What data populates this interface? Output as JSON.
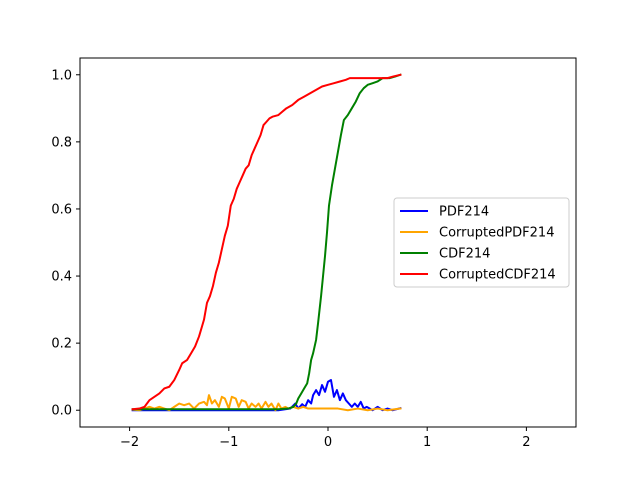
{
  "chart_data": {
    "type": "line",
    "title": "",
    "xlabel": "",
    "ylabel": "",
    "xlim": [
      -2.5,
      2.5
    ],
    "ylim": [
      -0.05,
      1.05
    ],
    "xticks": [
      -2,
      -1,
      0,
      1,
      2
    ],
    "xtick_labels": [
      "−2",
      "−1",
      "0",
      "1",
      "2"
    ],
    "yticks": [
      0.0,
      0.2,
      0.4,
      0.6,
      0.8,
      1.0
    ],
    "ytick_labels": [
      "0.0",
      "0.2",
      "0.4",
      "0.6",
      "0.8",
      "1.0"
    ],
    "grid": false,
    "legend_position": "center-right",
    "series": [
      {
        "name": "PDF214",
        "color": "#0000ff",
        "points": [
          [
            -1.97,
            0.0
          ],
          [
            -1.5,
            0.0
          ],
          [
            -1.0,
            0.0
          ],
          [
            -0.5,
            0.0
          ],
          [
            -0.38,
            0.005
          ],
          [
            -0.33,
            0.02
          ],
          [
            -0.3,
            0.005
          ],
          [
            -0.26,
            0.018
          ],
          [
            -0.23,
            0.01
          ],
          [
            -0.2,
            0.03
          ],
          [
            -0.17,
            0.02
          ],
          [
            -0.15,
            0.045
          ],
          [
            -0.12,
            0.06
          ],
          [
            -0.09,
            0.045
          ],
          [
            -0.06,
            0.075
          ],
          [
            -0.03,
            0.055
          ],
          [
            0.0,
            0.085
          ],
          [
            0.03,
            0.09
          ],
          [
            0.06,
            0.04
          ],
          [
            0.09,
            0.06
          ],
          [
            0.12,
            0.03
          ],
          [
            0.15,
            0.05
          ],
          [
            0.18,
            0.03
          ],
          [
            0.21,
            0.02
          ],
          [
            0.24,
            0.01
          ],
          [
            0.27,
            0.02
          ],
          [
            0.3,
            0.01
          ],
          [
            0.33,
            0.025
          ],
          [
            0.36,
            0.005
          ],
          [
            0.39,
            0.01
          ],
          [
            0.42,
            0.005
          ],
          [
            0.45,
            0.0
          ],
          [
            0.5,
            0.01
          ],
          [
            0.55,
            0.0
          ],
          [
            0.6,
            0.005
          ],
          [
            0.65,
            0.0
          ],
          [
            0.73,
            0.006
          ]
        ]
      },
      {
        "name": "CorruptedPDF214",
        "color": "#ffa500",
        "points": [
          [
            -1.97,
            0.002
          ],
          [
            -1.9,
            0.0
          ],
          [
            -1.85,
            0.005
          ],
          [
            -1.8,
            0.01
          ],
          [
            -1.75,
            0.005
          ],
          [
            -1.7,
            0.01
          ],
          [
            -1.65,
            0.005
          ],
          [
            -1.6,
            0.0
          ],
          [
            -1.55,
            0.01
          ],
          [
            -1.5,
            0.02
          ],
          [
            -1.45,
            0.015
          ],
          [
            -1.4,
            0.02
          ],
          [
            -1.35,
            0.005
          ],
          [
            -1.3,
            0.02
          ],
          [
            -1.25,
            0.025
          ],
          [
            -1.22,
            0.015
          ],
          [
            -1.2,
            0.045
          ],
          [
            -1.17,
            0.02
          ],
          [
            -1.14,
            0.03
          ],
          [
            -1.1,
            0.01
          ],
          [
            -1.07,
            0.04
          ],
          [
            -1.04,
            0.035
          ],
          [
            -1.0,
            0.005
          ],
          [
            -0.97,
            0.04
          ],
          [
            -0.93,
            0.035
          ],
          [
            -0.9,
            0.01
          ],
          [
            -0.87,
            0.03
          ],
          [
            -0.83,
            0.025
          ],
          [
            -0.8,
            0.005
          ],
          [
            -0.77,
            0.02
          ],
          [
            -0.73,
            0.01
          ],
          [
            -0.7,
            0.02
          ],
          [
            -0.67,
            0.005
          ],
          [
            -0.63,
            0.025
          ],
          [
            -0.6,
            0.01
          ],
          [
            -0.57,
            0.02
          ],
          [
            -0.53,
            0.0
          ],
          [
            -0.5,
            0.02
          ],
          [
            -0.47,
            0.005
          ],
          [
            -0.43,
            0.01
          ],
          [
            -0.4,
            0.005
          ],
          [
            -0.35,
            0.01
          ],
          [
            -0.3,
            0.005
          ],
          [
            -0.25,
            0.01
          ],
          [
            -0.2,
            0.005
          ],
          [
            -0.1,
            0.005
          ],
          [
            0.0,
            0.005
          ],
          [
            0.1,
            0.005
          ],
          [
            0.2,
            0.0
          ],
          [
            0.3,
            0.005
          ],
          [
            0.4,
            0.0
          ],
          [
            0.5,
            0.005
          ],
          [
            0.6,
            0.0
          ],
          [
            0.73,
            0.005
          ]
        ]
      },
      {
        "name": "CDF214",
        "color": "#008000",
        "points": [
          [
            -1.97,
            0.003
          ],
          [
            -1.5,
            0.003
          ],
          [
            -1.0,
            0.003
          ],
          [
            -0.5,
            0.003
          ],
          [
            -0.4,
            0.005
          ],
          [
            -0.35,
            0.01
          ],
          [
            -0.32,
            0.02
          ],
          [
            -0.3,
            0.035
          ],
          [
            -0.27,
            0.05
          ],
          [
            -0.24,
            0.065
          ],
          [
            -0.21,
            0.08
          ],
          [
            -0.19,
            0.11
          ],
          [
            -0.17,
            0.15
          ],
          [
            -0.15,
            0.17
          ],
          [
            -0.12,
            0.21
          ],
          [
            -0.1,
            0.26
          ],
          [
            -0.07,
            0.34
          ],
          [
            -0.05,
            0.4
          ],
          [
            -0.03,
            0.46
          ],
          [
            -0.01,
            0.53
          ],
          [
            0.01,
            0.61
          ],
          [
            0.04,
            0.67
          ],
          [
            0.07,
            0.72
          ],
          [
            0.1,
            0.77
          ],
          [
            0.13,
            0.82
          ],
          [
            0.16,
            0.865
          ],
          [
            0.2,
            0.88
          ],
          [
            0.24,
            0.9
          ],
          [
            0.28,
            0.92
          ],
          [
            0.32,
            0.945
          ],
          [
            0.36,
            0.96
          ],
          [
            0.4,
            0.97
          ],
          [
            0.45,
            0.975
          ],
          [
            0.5,
            0.98
          ],
          [
            0.55,
            0.99
          ],
          [
            0.62,
            0.99
          ],
          [
            0.68,
            0.995
          ],
          [
            0.73,
            1.0
          ]
        ]
      },
      {
        "name": "CorruptedCDF214",
        "color": "#ff0000",
        "points": [
          [
            -1.97,
            0.003
          ],
          [
            -1.9,
            0.005
          ],
          [
            -1.85,
            0.01
          ],
          [
            -1.8,
            0.03
          ],
          [
            -1.75,
            0.04
          ],
          [
            -1.7,
            0.05
          ],
          [
            -1.65,
            0.065
          ],
          [
            -1.6,
            0.07
          ],
          [
            -1.55,
            0.09
          ],
          [
            -1.5,
            0.12
          ],
          [
            -1.47,
            0.14
          ],
          [
            -1.42,
            0.15
          ],
          [
            -1.38,
            0.17
          ],
          [
            -1.34,
            0.19
          ],
          [
            -1.3,
            0.22
          ],
          [
            -1.27,
            0.25
          ],
          [
            -1.25,
            0.27
          ],
          [
            -1.22,
            0.32
          ],
          [
            -1.19,
            0.34
          ],
          [
            -1.16,
            0.37
          ],
          [
            -1.13,
            0.41
          ],
          [
            -1.1,
            0.44
          ],
          [
            -1.07,
            0.48
          ],
          [
            -1.04,
            0.52
          ],
          [
            -1.01,
            0.55
          ],
          [
            -0.98,
            0.61
          ],
          [
            -0.95,
            0.63
          ],
          [
            -0.92,
            0.66
          ],
          [
            -0.89,
            0.68
          ],
          [
            -0.86,
            0.7
          ],
          [
            -0.83,
            0.72
          ],
          [
            -0.8,
            0.73
          ],
          [
            -0.77,
            0.76
          ],
          [
            -0.74,
            0.78
          ],
          [
            -0.71,
            0.8
          ],
          [
            -0.68,
            0.82
          ],
          [
            -0.65,
            0.85
          ],
          [
            -0.62,
            0.86
          ],
          [
            -0.59,
            0.87
          ],
          [
            -0.56,
            0.875
          ],
          [
            -0.5,
            0.88
          ],
          [
            -0.46,
            0.89
          ],
          [
            -0.42,
            0.9
          ],
          [
            -0.36,
            0.91
          ],
          [
            -0.3,
            0.925
          ],
          [
            -0.24,
            0.935
          ],
          [
            -0.18,
            0.945
          ],
          [
            -0.12,
            0.955
          ],
          [
            -0.06,
            0.965
          ],
          [
            0.0,
            0.97
          ],
          [
            0.06,
            0.975
          ],
          [
            0.12,
            0.98
          ],
          [
            0.18,
            0.985
          ],
          [
            0.22,
            0.99
          ],
          [
            0.3,
            0.99
          ],
          [
            0.4,
            0.99
          ],
          [
            0.5,
            0.99
          ],
          [
            0.6,
            0.99
          ],
          [
            0.66,
            0.995
          ],
          [
            0.73,
            1.0
          ]
        ]
      }
    ]
  }
}
